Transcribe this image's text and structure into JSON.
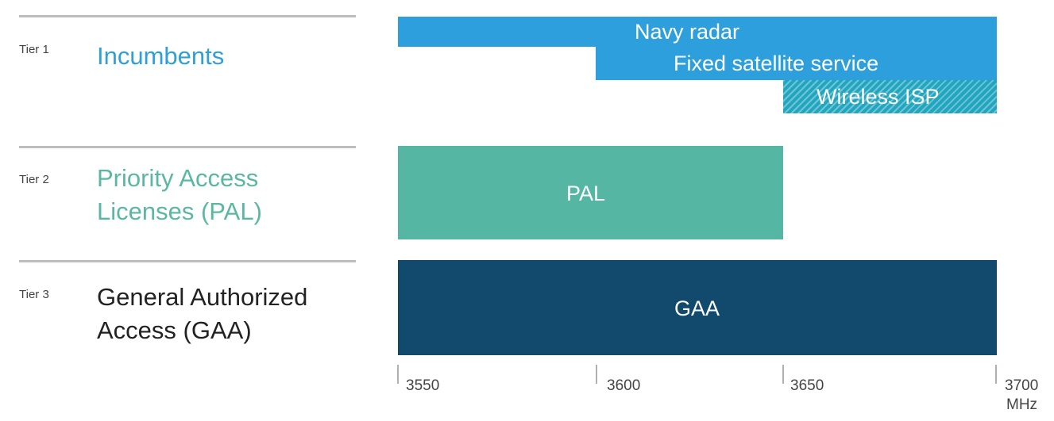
{
  "tiers": [
    {
      "tag": "Tier 1",
      "name": "Incumbents",
      "color": "#2f9fd8"
    },
    {
      "tag": "Tier 2",
      "name": "Priority Access\nLicenses (PAL)",
      "color": "#5ab8a2"
    },
    {
      "tag": "Tier 3",
      "name": "General Authorized\nAccess (GAA)",
      "color": "#222222"
    }
  ],
  "bands": [
    {
      "label": "Navy radar",
      "start_mhz": 3550,
      "end_mhz": 3700,
      "color": "#2d9fdc"
    },
    {
      "label": "Fixed satellite service",
      "start_mhz": 3600,
      "end_mhz": 3700,
      "color": "#2d9fdc"
    },
    {
      "label": "Wireless ISP",
      "start_mhz": 3650,
      "end_mhz": 3700,
      "color": "#22a6bf",
      "pattern": "hatched"
    },
    {
      "label": "PAL",
      "start_mhz": 3550,
      "end_mhz": 3650,
      "color": "#55b6a3"
    },
    {
      "label": "GAA",
      "start_mhz": 3550,
      "end_mhz": 3700,
      "color": "#114a6c"
    }
  ],
  "axis": {
    "ticks": [
      "3550",
      "3600",
      "3650",
      "3700"
    ],
    "unit": "MHz"
  }
}
